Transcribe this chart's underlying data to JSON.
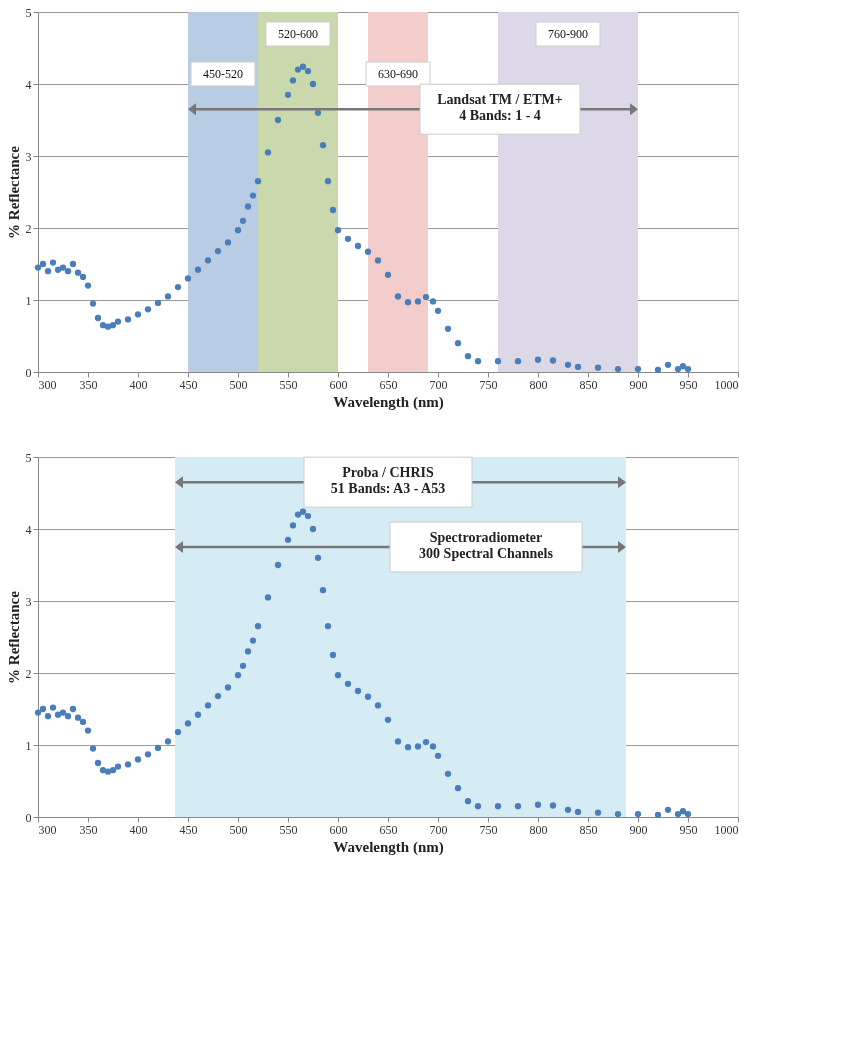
{
  "chart_data": [
    {
      "type": "scatter",
      "xlabel": "Wavelength (nm)",
      "ylabel": "% Reflectance",
      "x": [
        300,
        305,
        310,
        315,
        320,
        325,
        330,
        335,
        340,
        345,
        350,
        355,
        360,
        365,
        370,
        375,
        380,
        390,
        400,
        410,
        420,
        430,
        440,
        450,
        460,
        470,
        480,
        490,
        500,
        505,
        510,
        515,
        520,
        530,
        540,
        550,
        555,
        560,
        565,
        570,
        575,
        580,
        585,
        590,
        595,
        600,
        610,
        620,
        630,
        640,
        650,
        660,
        670,
        680,
        688,
        695,
        700,
        710,
        720,
        730,
        740,
        760,
        780,
        800,
        815,
        830,
        840,
        860,
        880,
        900,
        920,
        930,
        940,
        945,
        950
      ],
      "series": [
        {
          "color": "#4a7ebb",
          "values": [
            1.45,
            1.5,
            1.4,
            1.52,
            1.42,
            1.45,
            1.4,
            1.5,
            1.38,
            1.32,
            1.2,
            0.95,
            0.75,
            0.65,
            0.63,
            0.65,
            0.7,
            0.73,
            0.8,
            0.87,
            0.96,
            1.05,
            1.18,
            1.3,
            1.42,
            1.55,
            1.68,
            1.8,
            1.97,
            2.1,
            2.3,
            2.45,
            2.65,
            3.05,
            3.5,
            3.85,
            4.05,
            4.2,
            4.24,
            4.18,
            4.0,
            3.6,
            3.15,
            2.65,
            2.25,
            1.97,
            1.85,
            1.75,
            1.67,
            1.55,
            1.35,
            1.05,
            0.97,
            0.98,
            1.04,
            0.98,
            0.85,
            0.6,
            0.4,
            0.22,
            0.15,
            0.15,
            0.15,
            0.17,
            0.16,
            0.1,
            0.07,
            0.06,
            0.04,
            0.04,
            0.03,
            0.1,
            0.04,
            0.08,
            0.04
          ]
        }
      ],
      "xlim": [
        300,
        1000
      ],
      "xticks": [
        300,
        350,
        400,
        450,
        500,
        550,
        600,
        650,
        700,
        750,
        800,
        850,
        900,
        950,
        1000
      ],
      "ylim": [
        0,
        5
      ],
      "yticks": [
        0,
        1,
        2,
        3,
        4,
        5
      ],
      "grid": "y",
      "legend": false,
      "marker": "circle",
      "bands": [
        {
          "axis": "x",
          "from": 450,
          "to": 520,
          "label": "450-520",
          "color": "#b8cce4"
        },
        {
          "axis": "x",
          "from": 520,
          "to": 600,
          "label": "520-600",
          "color": "#c9d9ad"
        },
        {
          "axis": "x",
          "from": 630,
          "to": 690,
          "label": "630-690",
          "color": "#f3cccc"
        },
        {
          "axis": "x",
          "from": 760,
          "to": 900,
          "label": "760-900",
          "color": "#ddd8e8"
        }
      ],
      "annotations": [
        "Landsat TM / ETM+\n4 Bands: 1 - 4"
      ]
    },
    {
      "type": "scatter",
      "xlabel": "Wavelength (nm)",
      "ylabel": "% Reflectance",
      "x": [
        300,
        305,
        310,
        315,
        320,
        325,
        330,
        335,
        340,
        345,
        350,
        355,
        360,
        365,
        370,
        375,
        380,
        390,
        400,
        410,
        420,
        430,
        440,
        450,
        460,
        470,
        480,
        490,
        500,
        505,
        510,
        515,
        520,
        530,
        540,
        550,
        555,
        560,
        565,
        570,
        575,
        580,
        585,
        590,
        595,
        600,
        610,
        620,
        630,
        640,
        650,
        660,
        670,
        680,
        688,
        695,
        700,
        710,
        720,
        730,
        740,
        760,
        780,
        800,
        815,
        830,
        840,
        860,
        880,
        900,
        920,
        930,
        940,
        945,
        950
      ],
      "series": [
        {
          "color": "#4a7ebb",
          "values": [
            1.45,
            1.5,
            1.4,
            1.52,
            1.42,
            1.45,
            1.4,
            1.5,
            1.38,
            1.32,
            1.2,
            0.95,
            0.75,
            0.65,
            0.63,
            0.65,
            0.7,
            0.73,
            0.8,
            0.87,
            0.96,
            1.05,
            1.18,
            1.3,
            1.42,
            1.55,
            1.68,
            1.8,
            1.97,
            2.1,
            2.3,
            2.45,
            2.65,
            3.05,
            3.5,
            3.85,
            4.05,
            4.2,
            4.24,
            4.18,
            4.0,
            3.6,
            3.15,
            2.65,
            2.25,
            1.97,
            1.85,
            1.75,
            1.67,
            1.55,
            1.35,
            1.05,
            0.97,
            0.98,
            1.04,
            0.98,
            0.85,
            0.6,
            0.4,
            0.22,
            0.15,
            0.15,
            0.15,
            0.17,
            0.16,
            0.1,
            0.07,
            0.06,
            0.04,
            0.04,
            0.03,
            0.1,
            0.04,
            0.08,
            0.04
          ]
        }
      ],
      "xlim": [
        300,
        1000
      ],
      "xticks": [
        300,
        350,
        400,
        450,
        500,
        550,
        600,
        650,
        700,
        750,
        800,
        850,
        900,
        950,
        1000
      ],
      "ylim": [
        0,
        5
      ],
      "yticks": [
        0,
        1,
        2,
        3,
        4,
        5
      ],
      "grid": "y",
      "legend": false,
      "marker": "circle",
      "bands": [
        {
          "axis": "x",
          "from": 437,
          "to": 888,
          "color": "#d6ecf5"
        }
      ],
      "annotations": [
        "Proba / CHRIS\n51 Bands: A3 - A53",
        "Spectroradiometer\n300 Spectral Channels"
      ]
    }
  ]
}
